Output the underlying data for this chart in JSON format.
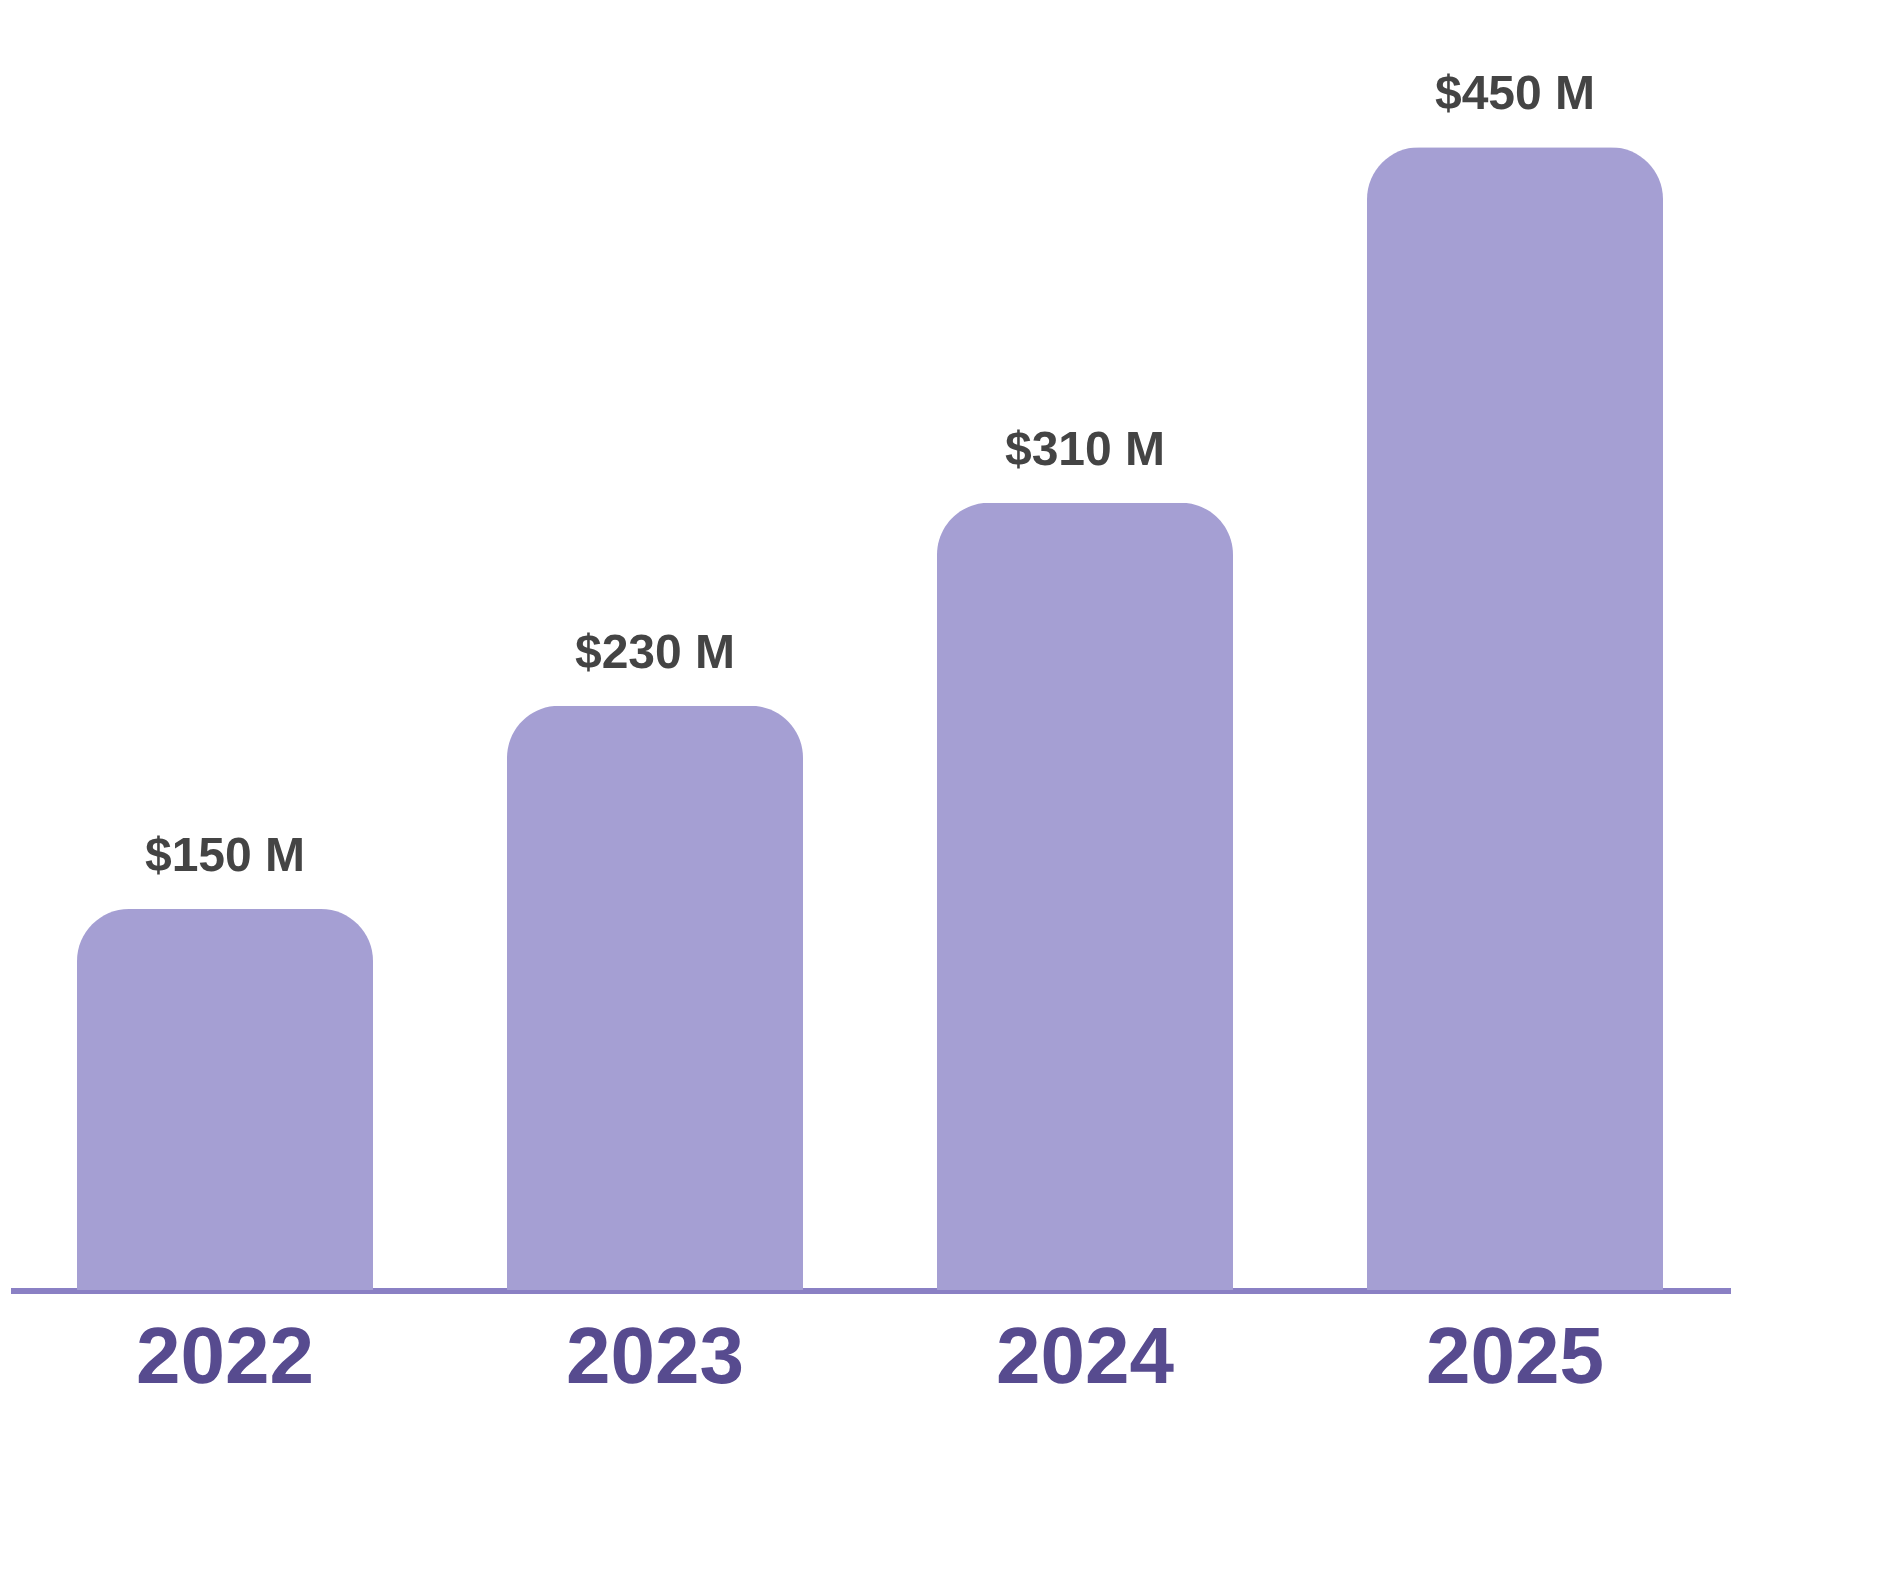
{
  "chart_data": {
    "type": "bar",
    "categories": [
      "2022",
      "2023",
      "2024",
      "2025"
    ],
    "values": [
      150,
      230,
      310,
      450
    ],
    "value_labels": [
      "$150 M",
      "$230 M",
      "$310 M",
      "$450 M"
    ],
    "color": "#a59fd3"
  }
}
